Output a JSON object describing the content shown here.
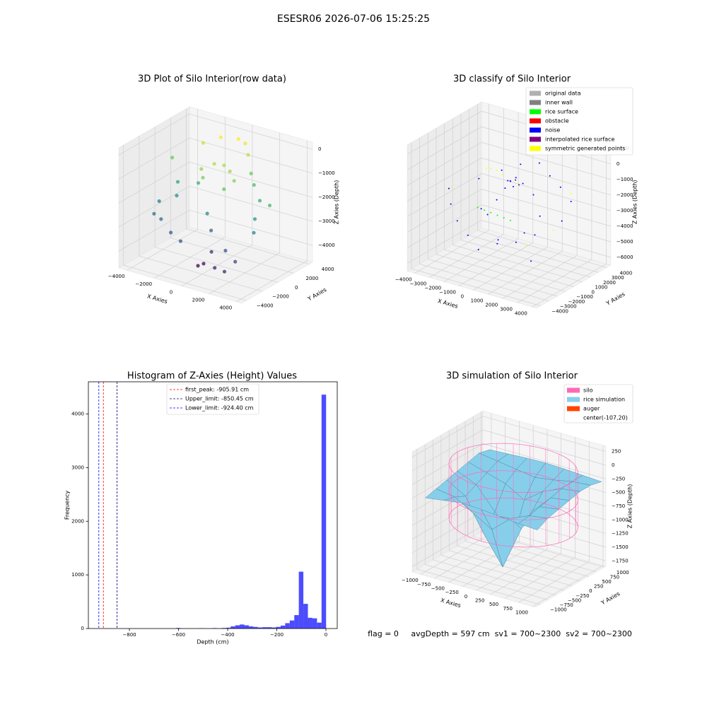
{
  "suptitle": "ESESR06 2026-07-06 15:25:25",
  "footer": "flag = 0     avgDepth = 597 cm  sv1 = 700~2300  sv2 = 700~2300",
  "chart_data": [
    {
      "type": "scatter3d",
      "title": "3D Plot of Silo Interior(row data)",
      "xlabel": "X Axies",
      "ylabel": "Y Axies",
      "zlabel": "Z Axies (Depth)",
      "xlim": [
        -4600,
        4400
      ],
      "ylim": [
        -4600,
        4400
      ],
      "zlim": [
        -4700,
        300
      ],
      "xticks": [
        {
          "value": -4000,
          "label": "−4000"
        },
        {
          "value": -2000,
          "label": "−2000"
        },
        0,
        2000,
        4000
      ],
      "yticks": [
        {
          "value": -4000,
          "label": "−4000"
        },
        {
          "value": -2000,
          "label": "−2000"
        },
        0,
        2000,
        4000
      ],
      "zticks": [
        {
          "value": -4000,
          "label": "−4000"
        },
        {
          "value": -3000,
          "label": "−3000"
        },
        {
          "value": -2000,
          "label": "−2000"
        },
        {
          "value": -1000,
          "label": "−1000"
        },
        0
      ],
      "colormap": [
        "#440154",
        "#3b528b",
        "#21918c",
        "#5ec962",
        "#fde725"
      ],
      "x": [
        -4200,
        -4000,
        -3800,
        -3500,
        -3000,
        -2500,
        -2000,
        -1500,
        -1000,
        -500,
        0,
        500,
        1000,
        1500,
        -1200,
        -600,
        0,
        600,
        1200,
        800,
        -800,
        2500,
        3000,
        3500,
        3800,
        2000,
        -200,
        200,
        400,
        0,
        -300,
        1500,
        2500,
        3000,
        -2000,
        -3000
      ],
      "y": [
        1500,
        -500,
        -1500,
        1000,
        -2000,
        2500,
        -2500,
        3000,
        -3000,
        3500,
        3500,
        3000,
        2500,
        2000,
        0,
        600,
        800,
        500,
        0,
        -600,
        -500,
        1000,
        -500,
        -1500,
        0,
        -2500,
        -1000,
        -1200,
        -1500,
        -1800,
        -2000,
        -3000,
        -3500,
        -3000,
        1000,
        0
      ],
      "z": [
        -1200,
        -2600,
        -2900,
        -2000,
        -2900,
        -500,
        -3200,
        -200,
        -3300,
        -200,
        -300,
        -600,
        -1200,
        -1500,
        -900,
        -700,
        -700,
        -800,
        -1000,
        -1300,
        -1100,
        -1800,
        -2200,
        -2500,
        -1600,
        -3300,
        -2400,
        -3000,
        -3800,
        -4300,
        -4400,
        -4000,
        -3900,
        -3500,
        -1800,
        -2300
      ]
    },
    {
      "type": "scatter3d",
      "title": "3D classify of Silo Interior",
      "xlabel": "X Axies",
      "ylabel": "Y Axies",
      "zlabel": "Z Axies (Depth)",
      "xlim": [
        -4500,
        4300
      ],
      "ylim": [
        -4500,
        4500
      ],
      "zlim": [
        -6500,
        1600
      ],
      "xticks": [
        {
          "value": -4000,
          "label": "−4000"
        },
        {
          "value": -3000,
          "label": "−3000"
        },
        {
          "value": -2000,
          "label": "−2000"
        },
        {
          "value": -1000,
          "label": "−1000"
        },
        0,
        1000,
        2000,
        3000,
        4000
      ],
      "yticks": [
        {
          "value": -4000,
          "label": "−4000"
        },
        {
          "value": -3000,
          "label": "−3000"
        },
        {
          "value": -2000,
          "label": "−2000"
        },
        {
          "value": -1000,
          "label": "−1000"
        },
        0,
        1000,
        2000,
        3000,
        4000
      ],
      "zticks": [
        {
          "value": -6000,
          "label": "−6000"
        },
        {
          "value": -5000,
          "label": "−5000"
        },
        {
          "value": -4000,
          "label": "−4000"
        },
        {
          "value": -3000,
          "label": "−3000"
        },
        {
          "value": -2000,
          "label": "−2000"
        },
        {
          "value": -1000,
          "label": "−1000"
        },
        0,
        1000
      ],
      "series": [
        {
          "name": "original data",
          "color": "#b0b0b0",
          "x": [],
          "y": [],
          "z": []
        },
        {
          "name": "inner wall",
          "color": "#808080",
          "x": [],
          "y": [],
          "z": []
        },
        {
          "name": "rice surface",
          "color": "#00ff00",
          "x": [
            -2000,
            -1500,
            -1000,
            -500,
            0,
            500
          ],
          "y": [
            -400,
            -500,
            -600,
            -700,
            -800,
            -900
          ],
          "z": [
            -3000,
            -3000,
            -3000,
            -3000,
            -3000,
            -3000
          ]
        },
        {
          "name": "obstacle",
          "color": "#ff0000",
          "x": [],
          "y": [],
          "z": []
        },
        {
          "name": "noise",
          "color": "#0000ff",
          "x": [
            -4200,
            -3500,
            -3000,
            -2500,
            -2000,
            -1500,
            -1000,
            -500,
            0,
            500,
            1000,
            1500,
            2000,
            2500,
            3000,
            3500,
            -300,
            0,
            300,
            200,
            -200,
            -1000,
            1000,
            -2000,
            2000,
            0,
            0,
            -1500,
            1500,
            2800
          ],
          "y": [
            0,
            -1000,
            1500,
            -2000,
            2500,
            -2500,
            3000,
            -3000,
            3500,
            -2500,
            3000,
            -2000,
            2500,
            -1500,
            2000,
            0,
            200,
            0,
            -200,
            300,
            -300,
            -1000,
            1000,
            0,
            0,
            -1500,
            1500,
            1000,
            -1000,
            -2500
          ],
          "z": [
            -2500,
            -3000,
            -2000,
            -3500,
            -1500,
            -4000,
            -1000,
            -4500,
            -800,
            -4000,
            -1200,
            -3800,
            -1500,
            -3200,
            -2000,
            -2500,
            -1000,
            -900,
            -1100,
            -700,
            -1300,
            -3000,
            -1800,
            -3200,
            -2600,
            -4200,
            -1500,
            -2800,
            -3500,
            -4500
          ]
        },
        {
          "name": "interpolated rice surface",
          "color": "#800080",
          "x": [
            -300,
            0,
            300
          ],
          "y": [
            500,
            600,
            500
          ],
          "z": [
            -1100,
            -1000,
            -1200
          ]
        },
        {
          "name": "symmetric generated points",
          "color": "#ffff00",
          "x": [
            -2500,
            -2000,
            -1500,
            -3800,
            3500,
            3000,
            -1000,
            2500
          ],
          "y": [
            1500,
            1200,
            1000,
            -500,
            -1000,
            2000,
            800,
            -2500
          ],
          "z": [
            -1200,
            -1000,
            -900,
            -2200,
            -2800,
            -1500,
            -1000,
            -3600
          ]
        }
      ]
    },
    {
      "type": "histogram",
      "title": "Histogram of Z-Axies (Height) Values",
      "xlabel": "Depth (cm)",
      "ylabel": "Frequency",
      "color": "#0000ff",
      "alpha": 0.7,
      "xlim": [
        -967,
        46
      ],
      "ylim": [
        0,
        4600
      ],
      "xticks": [
        {
          "value": -800,
          "label": "−800"
        },
        {
          "value": -600,
          "label": "−600"
        },
        {
          "value": -400,
          "label": "−400"
        },
        {
          "value": -200,
          "label": "−200"
        },
        0
      ],
      "yticks": [
        0,
        1000,
        2000,
        3000,
        4000
      ],
      "bins": [
        -924.4,
        -905.9,
        -887.4,
        -868.9,
        -850.4,
        -831.9,
        -813.4,
        -794.9,
        -776.4,
        -757.9,
        -739.4,
        -720.9,
        -702.4,
        -683.9,
        -665.4,
        -646.9,
        -628.4,
        -609.9,
        -591.4,
        -572.9,
        -554.4,
        -535.9,
        -517.4,
        -498.9,
        -480.4,
        -461.9,
        -443.4,
        -424.9,
        -406.4,
        -387.9,
        -369.4,
        -350.9,
        -332.4,
        -313.9,
        -295.4,
        -276.9,
        -258.4,
        -239.9,
        -221.4,
        -202.9,
        -184.4,
        -165.9,
        -147.4,
        -128.9,
        -110.4,
        -91.9,
        -73.4,
        -54.9,
        -36.4,
        -17.9,
        0.6
      ],
      "values": [
        0,
        0,
        0,
        0,
        0,
        0,
        0,
        0,
        0,
        0,
        0,
        0,
        0,
        0,
        0,
        0,
        0,
        10,
        0,
        0,
        0,
        0,
        5,
        0,
        0,
        8,
        0,
        10,
        15,
        40,
        60,
        75,
        60,
        40,
        30,
        20,
        25,
        25,
        20,
        30,
        55,
        100,
        150,
        250,
        1060,
        460,
        200,
        190,
        110,
        4360
      ],
      "vlines": [
        {
          "name": "first_peak: -905.91 cm",
          "value": -905.91,
          "color": "#ff0000"
        },
        {
          "name": "Upper_limit: -850.45 cm",
          "value": -850.45,
          "color": "#000080"
        },
        {
          "name": "Lower_limit: -924.40 cm",
          "value": -924.4,
          "color": "#0000ff"
        }
      ]
    },
    {
      "type": "surface3d",
      "title": "3D simulation of Silo Interior",
      "xlabel": "X Axies",
      "ylabel": "Y Axies",
      "zlabel": "Z Axies (Depth)",
      "xlim": [
        -1150,
        1050
      ],
      "ylim": [
        -1150,
        1050
      ],
      "zlim": [
        -1850,
        350
      ],
      "xticks": [
        {
          "value": -1000,
          "label": "−1000"
        },
        {
          "value": -750,
          "label": "−750"
        },
        {
          "value": -500,
          "label": "−500"
        },
        {
          "value": -250,
          "label": "−250"
        },
        0,
        250,
        500,
        750,
        1000
      ],
      "yticks": [
        {
          "value": -1000,
          "label": "−1000"
        },
        {
          "value": -750,
          "label": "−750"
        },
        {
          "value": -500,
          "label": "−500"
        },
        {
          "value": -250,
          "label": "−250"
        },
        0,
        250,
        500,
        750,
        1000
      ],
      "zticks": [
        {
          "value": -1750,
          "label": "−1750"
        },
        {
          "value": -1500,
          "label": "−1500"
        },
        {
          "value": -1250,
          "label": "−1250"
        },
        {
          "value": -1000,
          "label": "−1000"
        },
        {
          "value": -750,
          "label": "−750"
        },
        {
          "value": -500,
          "label": "−500"
        },
        {
          "value": -250,
          "label": "−250"
        },
        0,
        250
      ],
      "silo": {
        "name": "silo",
        "color": "#ff69b4",
        "radius": 1000,
        "top": 0,
        "bottom": -1000
      },
      "surface": {
        "name": "rice simulation",
        "color": "#87ceeb",
        "x": [
          -1000,
          -667,
          -333,
          0,
          333,
          667,
          1000
        ],
        "y": [
          -1000,
          -667,
          -333,
          0,
          333,
          667,
          1000
        ],
        "z": [
          [
            -500,
            -450,
            -400,
            -420,
            -450,
            -480,
            -500
          ],
          [
            -450,
            -500,
            -700,
            -900,
            -600,
            -450,
            -400
          ],
          [
            -400,
            -600,
            -1200,
            -1700,
            -900,
            -400,
            -350
          ],
          [
            -350,
            -500,
            -900,
            -1300,
            -700,
            -350,
            -300
          ],
          [
            -300,
            -400,
            -500,
            -700,
            -450,
            -300,
            -250
          ],
          [
            -250,
            -300,
            -350,
            -400,
            -350,
            -280,
            -250
          ],
          [
            -300,
            -280,
            -260,
            -250,
            -260,
            -280,
            -300
          ]
        ]
      },
      "auger": {
        "name": "auger",
        "color": "#ff4500"
      },
      "center": "center(-107,20)"
    }
  ]
}
